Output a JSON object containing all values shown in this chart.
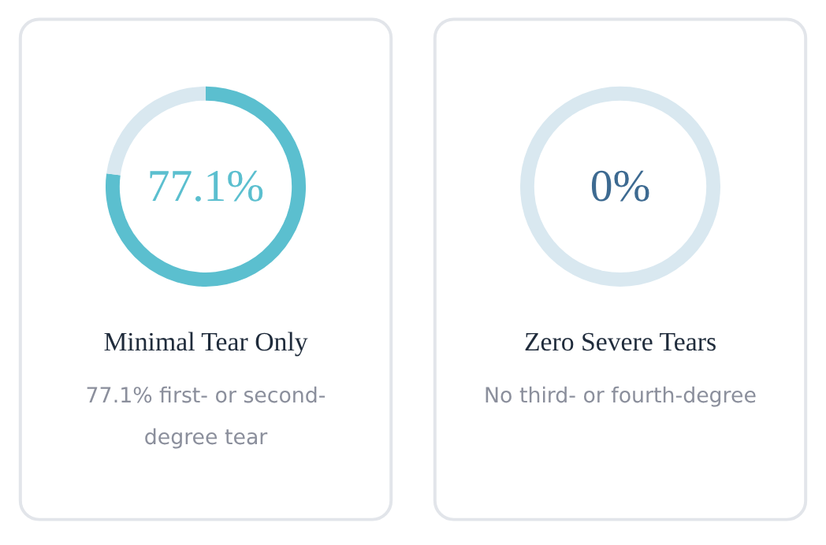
{
  "chart_data": [
    {
      "type": "donut",
      "title": "Minimal Tear Only",
      "subtitle": "77.1% first- or second-degree tear",
      "categories": [
        null,
        null
      ],
      "values": [
        77.1,
        22.9
      ],
      "colors": [
        "#5bbfcf",
        "#d9e8f0"
      ],
      "value_labels": [
        "77.1%",
        null
      ]
    },
    {
      "type": "donut",
      "title": "Zero Severe Tears",
      "subtitle": "No third- or fourth-degree",
      "categories": [
        null,
        null
      ],
      "values": [
        0,
        100
      ],
      "colors": [
        "#3d6a91",
        "#d9e8f0"
      ],
      "value_labels": [
        "0%",
        null
      ]
    }
  ]
}
